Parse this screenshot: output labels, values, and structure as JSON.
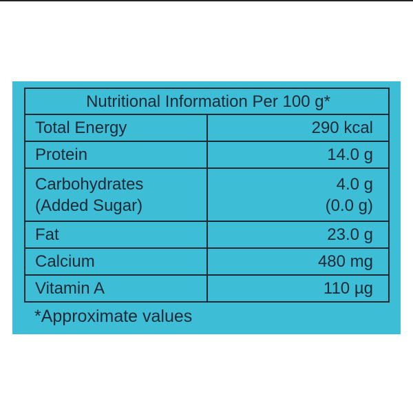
{
  "header": {
    "title": "Nutritional Information Per 100 g*"
  },
  "table": {
    "rows": [
      {
        "label": [
          "Total Energy"
        ],
        "value": [
          "290 kcal"
        ]
      },
      {
        "label": [
          "Protein"
        ],
        "value": [
          "14.0 g"
        ]
      },
      {
        "label": [
          "Carbohydrates",
          "(Added Sugar)"
        ],
        "value": [
          "4.0 g",
          "(0.0 g)"
        ]
      },
      {
        "label": [
          "Fat"
        ],
        "value": [
          "23.0 g"
        ]
      },
      {
        "label": [
          "Calcium"
        ],
        "value": [
          "480 mg"
        ]
      },
      {
        "label": [
          "Vitamin A"
        ],
        "value": [
          "110 µg"
        ]
      }
    ]
  },
  "footnote": "*Approximate values"
}
